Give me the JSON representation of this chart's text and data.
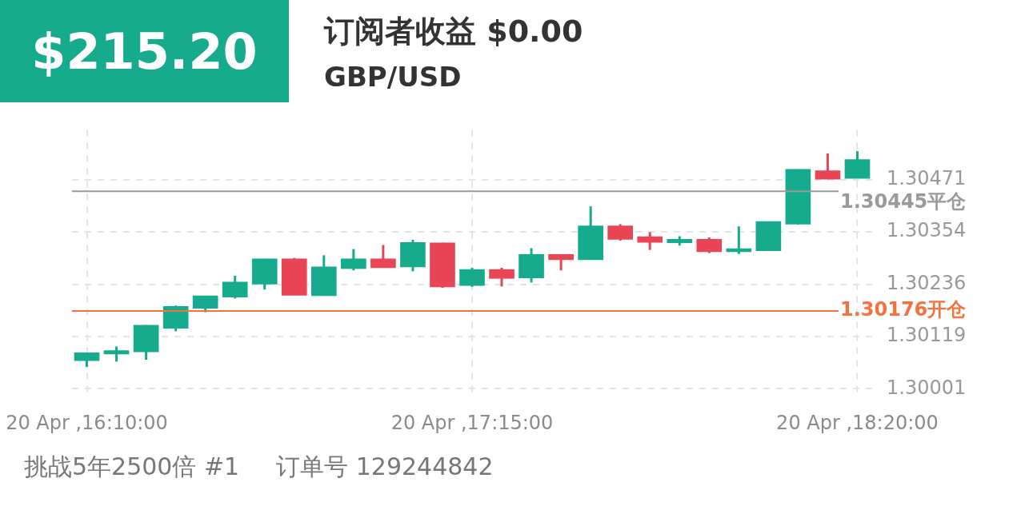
{
  "chart_data": {
    "type": "candlestick",
    "title": "订阅者收益 $0.00",
    "subtitle": "GBP/USD",
    "annotations": [
      "$215.20",
      "挑战5年2500倍 #1",
      "订单号 129244842"
    ],
    "categories": [
      "20 Apr ,16:10:00",
      null,
      null,
      null,
      null,
      null,
      null,
      null,
      null,
      null,
      null,
      null,
      null,
      "20 Apr ,17:15:00",
      null,
      null,
      null,
      null,
      null,
      null,
      null,
      null,
      null,
      null,
      null,
      null,
      "20 Apr ,18:20:00"
    ],
    "ohlc": [
      [
        1.30064,
        1.30082,
        1.3005,
        1.30082
      ],
      [
        1.30079,
        1.30096,
        1.30062,
        1.30087
      ],
      [
        1.30084,
        1.30144,
        1.30066,
        1.30144
      ],
      [
        1.30137,
        1.30188,
        1.3013,
        1.30186
      ],
      [
        1.30182,
        1.3021,
        1.30173,
        1.3021
      ],
      [
        1.30207,
        1.30255,
        1.30204,
        1.30241
      ],
      [
        1.30236,
        1.30293,
        1.30224,
        1.30293
      ],
      [
        1.30293,
        1.30295,
        1.30211,
        1.30211
      ],
      [
        1.3021,
        1.30301,
        1.3021,
        1.30275
      ],
      [
        1.30271,
        1.30315,
        1.30267,
        1.30293
      ],
      [
        1.30293,
        1.30324,
        1.30273,
        1.30273
      ],
      [
        1.30275,
        1.30336,
        1.30265,
        1.3033
      ],
      [
        1.30329,
        1.30329,
        1.30228,
        1.3023
      ],
      [
        1.30233,
        1.30273,
        1.3023,
        1.30269
      ],
      [
        1.30269,
        1.30273,
        1.30231,
        1.30249
      ],
      [
        1.3025,
        1.30317,
        1.3024,
        1.30303
      ],
      [
        1.30303,
        1.30303,
        1.30267,
        1.30291
      ],
      [
        1.30291,
        1.30411,
        1.30291,
        1.30367
      ],
      [
        1.30367,
        1.30371,
        1.30334,
        1.30337
      ],
      [
        1.30343,
        1.30353,
        1.30313,
        1.3033
      ],
      [
        1.30329,
        1.30344,
        1.30323,
        1.30337
      ],
      [
        1.30337,
        1.30341,
        1.30306,
        1.30309
      ],
      [
        1.30309,
        1.30366,
        1.30304,
        1.30316
      ],
      [
        1.30311,
        1.30377,
        1.30311,
        1.30377
      ],
      [
        1.30371,
        1.30494,
        1.3037,
        1.30494
      ],
      [
        1.30491,
        1.3053,
        1.30472,
        1.30472
      ],
      [
        1.30474,
        1.30535,
        1.30474,
        1.30516
      ]
    ],
    "colors": [
      "#16ab8c",
      "#16ab8c",
      "#16ab8c",
      "#16ab8c",
      "#16ab8c",
      "#16ab8c",
      "#16ab8c",
      "#e84656",
      "#16ab8c",
      "#16ab8c",
      "#e84656",
      "#16ab8c",
      "#e84656",
      "#16ab8c",
      "#e84656",
      "#16ab8c",
      "#e84656",
      "#16ab8c",
      "#e84656",
      "#e84656",
      "#16ab8c",
      "#e84656",
      "#16ab8c",
      "#16ab8c",
      "#16ab8c",
      "#e84656",
      "#16ab8c"
    ],
    "ylim": [
      1.29989,
      1.30583
    ],
    "yticks": [
      1.30001,
      1.30119,
      1.30236,
      1.30354,
      1.30471
    ],
    "grid": true,
    "ref_lines": [
      {
        "axis": "y",
        "value": 1.30445,
        "label": "1.30445平仓",
        "color": "#9a9a9a"
      },
      {
        "axis": "y",
        "value": 1.30176,
        "label": "1.30176开仓",
        "color": "#f2733f"
      }
    ]
  }
}
